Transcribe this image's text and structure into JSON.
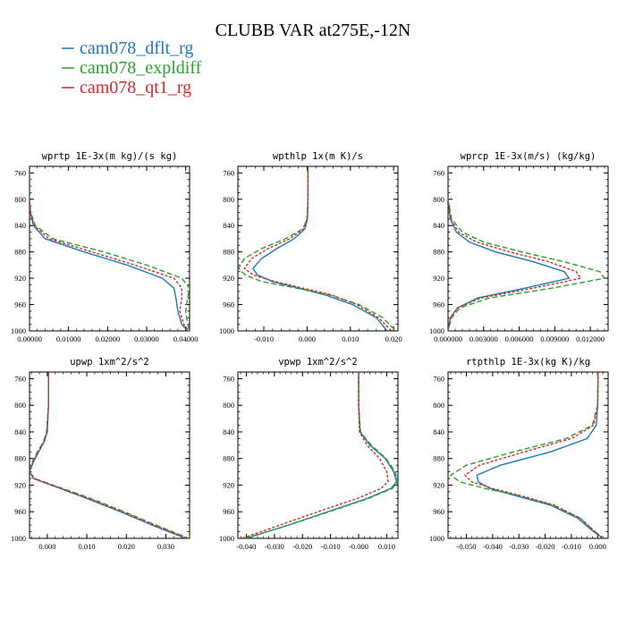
{
  "figure": {
    "title": "CLUBB VAR at275E,-12N",
    "legend": [
      {
        "name": "cam078_dflt_rg",
        "color": "#1f77b4"
      },
      {
        "name": "cam078_expldiff",
        "color": "#2ca02c"
      },
      {
        "name": "cam078_qt1_rg",
        "color": "#d62728"
      }
    ]
  },
  "chart_data": [
    {
      "type": "line",
      "title": "wprtp  1E-3x(m kg)/(s kg)",
      "xlim": [
        0,
        0.041
      ],
      "ylim": [
        1000,
        750
      ],
      "yticks": [
        760,
        800,
        840,
        880,
        920,
        960,
        1000
      ],
      "xticks": [
        0,
        0.01,
        0.02,
        0.03,
        0.04
      ],
      "xticklabels": [
        "0.00000",
        "0.01000",
        "0.02000",
        "0.03000",
        "0.04000"
      ],
      "y": [
        750,
        800,
        820,
        840,
        860,
        880,
        900,
        920,
        935,
        950,
        970,
        990,
        1000
      ],
      "series": [
        {
          "name": "cam078_dflt_rg",
          "x": [
            0,
            0,
            0.0002,
            0.001,
            0.004,
            0.014,
            0.025,
            0.034,
            0.037,
            0.0375,
            0.038,
            0.039,
            0.0405
          ]
        },
        {
          "name": "cam078_expldiff",
          "x": [
            0,
            0,
            0.0003,
            0.0015,
            0.006,
            0.019,
            0.03,
            0.039,
            0.041,
            0.0405,
            0.04,
            0.0405,
            0.041
          ]
        },
        {
          "name": "cam078_qt1_rg",
          "x": [
            0,
            0,
            0.0002,
            0.0012,
            0.005,
            0.016,
            0.027,
            0.037,
            0.039,
            0.039,
            0.0385,
            0.0395,
            0.0408
          ]
        }
      ]
    },
    {
      "type": "line",
      "title": "wpthlp  1x(m K)/s",
      "xlim": [
        -0.016,
        0.021
      ],
      "ylim": [
        1000,
        750
      ],
      "yticks": [
        760,
        800,
        840,
        880,
        920,
        960,
        1000
      ],
      "xticks": [
        -0.01,
        0,
        0.01,
        0.02
      ],
      "xticklabels": [
        "-0.010",
        "0.000",
        "0.010",
        "0.020"
      ],
      "y": [
        750,
        800,
        830,
        845,
        860,
        875,
        890,
        905,
        915,
        925,
        935,
        945,
        960,
        980,
        1000
      ],
      "series": [
        {
          "name": "cam078_dflt_rg",
          "x": [
            0.0002,
            0.0002,
            0.0001,
            -0.0005,
            -0.003,
            -0.007,
            -0.0105,
            -0.0125,
            -0.0115,
            -0.008,
            -0.002,
            0.004,
            0.0105,
            0.016,
            0.0185
          ]
        },
        {
          "name": "cam078_expldiff",
          "x": [
            0.0002,
            0.0002,
            0,
            -0.001,
            -0.005,
            -0.0105,
            -0.0145,
            -0.0158,
            -0.0143,
            -0.0105,
            -0.0025,
            0.005,
            0.012,
            0.0175,
            0.0205
          ]
        },
        {
          "name": "cam078_qt1_rg",
          "x": [
            0.0002,
            0.0002,
            0,
            -0.0008,
            -0.004,
            -0.009,
            -0.0128,
            -0.0145,
            -0.0125,
            -0.0075,
            -0.001,
            0.0055,
            0.0115,
            0.0165,
            0.0195
          ]
        }
      ]
    },
    {
      "type": "line",
      "title": "wprcp  1E-3x(m/s) (kg/kg)",
      "xlim": [
        0,
        0.0135
      ],
      "ylim": [
        1000,
        750
      ],
      "yticks": [
        760,
        800,
        840,
        880,
        920,
        960,
        1000
      ],
      "xticks": [
        0,
        0.003,
        0.006,
        0.009,
        0.012
      ],
      "xticklabels": [
        "0.000000",
        "0.003000",
        "0.006000",
        "0.009000",
        "0.012000"
      ],
      "y": [
        750,
        800,
        830,
        850,
        865,
        880,
        895,
        910,
        920,
        935,
        950,
        965,
        980,
        1000
      ],
      "series": [
        {
          "name": "cam078_dflt_rg",
          "x": [
            0,
            0,
            0.0002,
            0.0007,
            0.0018,
            0.004,
            0.0072,
            0.0098,
            0.0102,
            0.0065,
            0.0025,
            0.0008,
            0.0002,
            0
          ]
        },
        {
          "name": "cam078_expldiff",
          "x": [
            0,
            0,
            0.0003,
            0.0012,
            0.003,
            0.0062,
            0.0098,
            0.0128,
            0.0132,
            0.0088,
            0.0035,
            0.001,
            0.0003,
            0
          ]
        },
        {
          "name": "cam078_qt1_rg",
          "x": [
            0,
            0,
            0.0002,
            0.0009,
            0.0024,
            0.0052,
            0.0085,
            0.0108,
            0.0112,
            0.0072,
            0.0028,
            0.0008,
            0.0002,
            0
          ]
        }
      ]
    },
    {
      "type": "line",
      "title": "upwp  1xm^2/s^2",
      "xlim": [
        -0.0045,
        0.036
      ],
      "ylim": [
        1000,
        750
      ],
      "yticks": [
        760,
        800,
        840,
        880,
        920,
        960,
        1000
      ],
      "xticks": [
        0,
        0.01,
        0.02,
        0.03
      ],
      "xticklabels": [
        "0.000",
        "0.010",
        "0.020",
        "0.030"
      ],
      "y": [
        750,
        800,
        840,
        855,
        870,
        885,
        900,
        910,
        920,
        940,
        960,
        980,
        1000
      ],
      "series": [
        {
          "name": "cam078_dflt_rg",
          "x": [
            0.0003,
            0.0003,
            0,
            -0.0008,
            -0.0022,
            -0.0035,
            -0.0045,
            -0.0035,
            0.001,
            0.01,
            0.0185,
            0.0265,
            0.035
          ]
        },
        {
          "name": "cam078_expldiff",
          "x": [
            0.0003,
            0.0003,
            -0.0002,
            -0.001,
            -0.0025,
            -0.0038,
            -0.0045,
            -0.0032,
            0.0015,
            0.011,
            0.0195,
            0.0275,
            0.0358
          ]
        },
        {
          "name": "cam078_qt1_rg",
          "x": [
            0.0003,
            0.0003,
            -0.0001,
            -0.0009,
            -0.0023,
            -0.0036,
            -0.0045,
            -0.0033,
            0.0012,
            0.0105,
            0.019,
            0.027,
            0.0355
          ]
        }
      ]
    },
    {
      "type": "line",
      "title": "vpwp  1xm^2/s^2",
      "xlim": [
        -0.043,
        0.014
      ],
      "ylim": [
        1000,
        750
      ],
      "yticks": [
        760,
        800,
        840,
        880,
        920,
        960,
        1000
      ],
      "xticks": [
        -0.04,
        -0.03,
        -0.02,
        -0.01,
        0,
        0.01
      ],
      "xticklabels": [
        "-0.040",
        "-0.030",
        "-0.020",
        "-0.010",
        "-0.000",
        "0.010"
      ],
      "y": [
        750,
        800,
        840,
        860,
        880,
        900,
        915,
        925,
        940,
        960,
        980,
        1000
      ],
      "series": [
        {
          "name": "cam078_dflt_rg",
          "x": [
            0,
            0,
            0.0005,
            0.004,
            0.0095,
            0.0125,
            0.0135,
            0.0115,
            0.003,
            -0.011,
            -0.025,
            -0.04
          ]
        },
        {
          "name": "cam078_expldiff",
          "x": [
            0,
            0,
            0.0007,
            0.0045,
            0.0098,
            0.013,
            0.014,
            0.012,
            0.0035,
            -0.0105,
            -0.0248,
            -0.0405
          ]
        },
        {
          "name": "cam078_qt1_rg",
          "x": [
            0,
            0,
            0.0003,
            0.003,
            0.0075,
            0.01,
            0.0105,
            0.008,
            -0.0005,
            -0.0145,
            -0.028,
            -0.0415
          ]
        }
      ]
    },
    {
      "type": "line",
      "title": "rtpthlp  1E-3x(kg K)/kg",
      "xlim": [
        -0.057,
        0.004
      ],
      "ylim": [
        1000,
        750
      ],
      "yticks": [
        760,
        800,
        840,
        880,
        920,
        960,
        1000
      ],
      "xticks": [
        -0.05,
        -0.04,
        -0.03,
        -0.02,
        -0.01,
        0
      ],
      "xticklabels": [
        "-0.050",
        "-0.040",
        "-0.030",
        "-0.020",
        "-0.010",
        "0.000"
      ],
      "y": [
        750,
        800,
        830,
        850,
        870,
        890,
        905,
        915,
        925,
        935,
        950,
        970,
        990,
        1000
      ],
      "series": [
        {
          "name": "cam078_dflt_rg",
          "x": [
            0.0002,
            0,
            -0.0005,
            -0.004,
            -0.018,
            -0.037,
            -0.046,
            -0.0455,
            -0.041,
            -0.032,
            -0.018,
            -0.0075,
            -0.0015,
            0.002
          ]
        },
        {
          "name": "cam078_expldiff",
          "x": [
            0.0002,
            0,
            -0.002,
            -0.012,
            -0.032,
            -0.05,
            -0.056,
            -0.0525,
            -0.043,
            -0.031,
            -0.017,
            -0.0065,
            -0.001,
            0.0025
          ]
        },
        {
          "name": "cam078_qt1_rg",
          "x": [
            0.0002,
            0,
            -0.0015,
            -0.01,
            -0.028,
            -0.045,
            -0.0505,
            -0.048,
            -0.04,
            -0.03,
            -0.0165,
            -0.0065,
            -0.001,
            0.002
          ]
        }
      ]
    }
  ]
}
